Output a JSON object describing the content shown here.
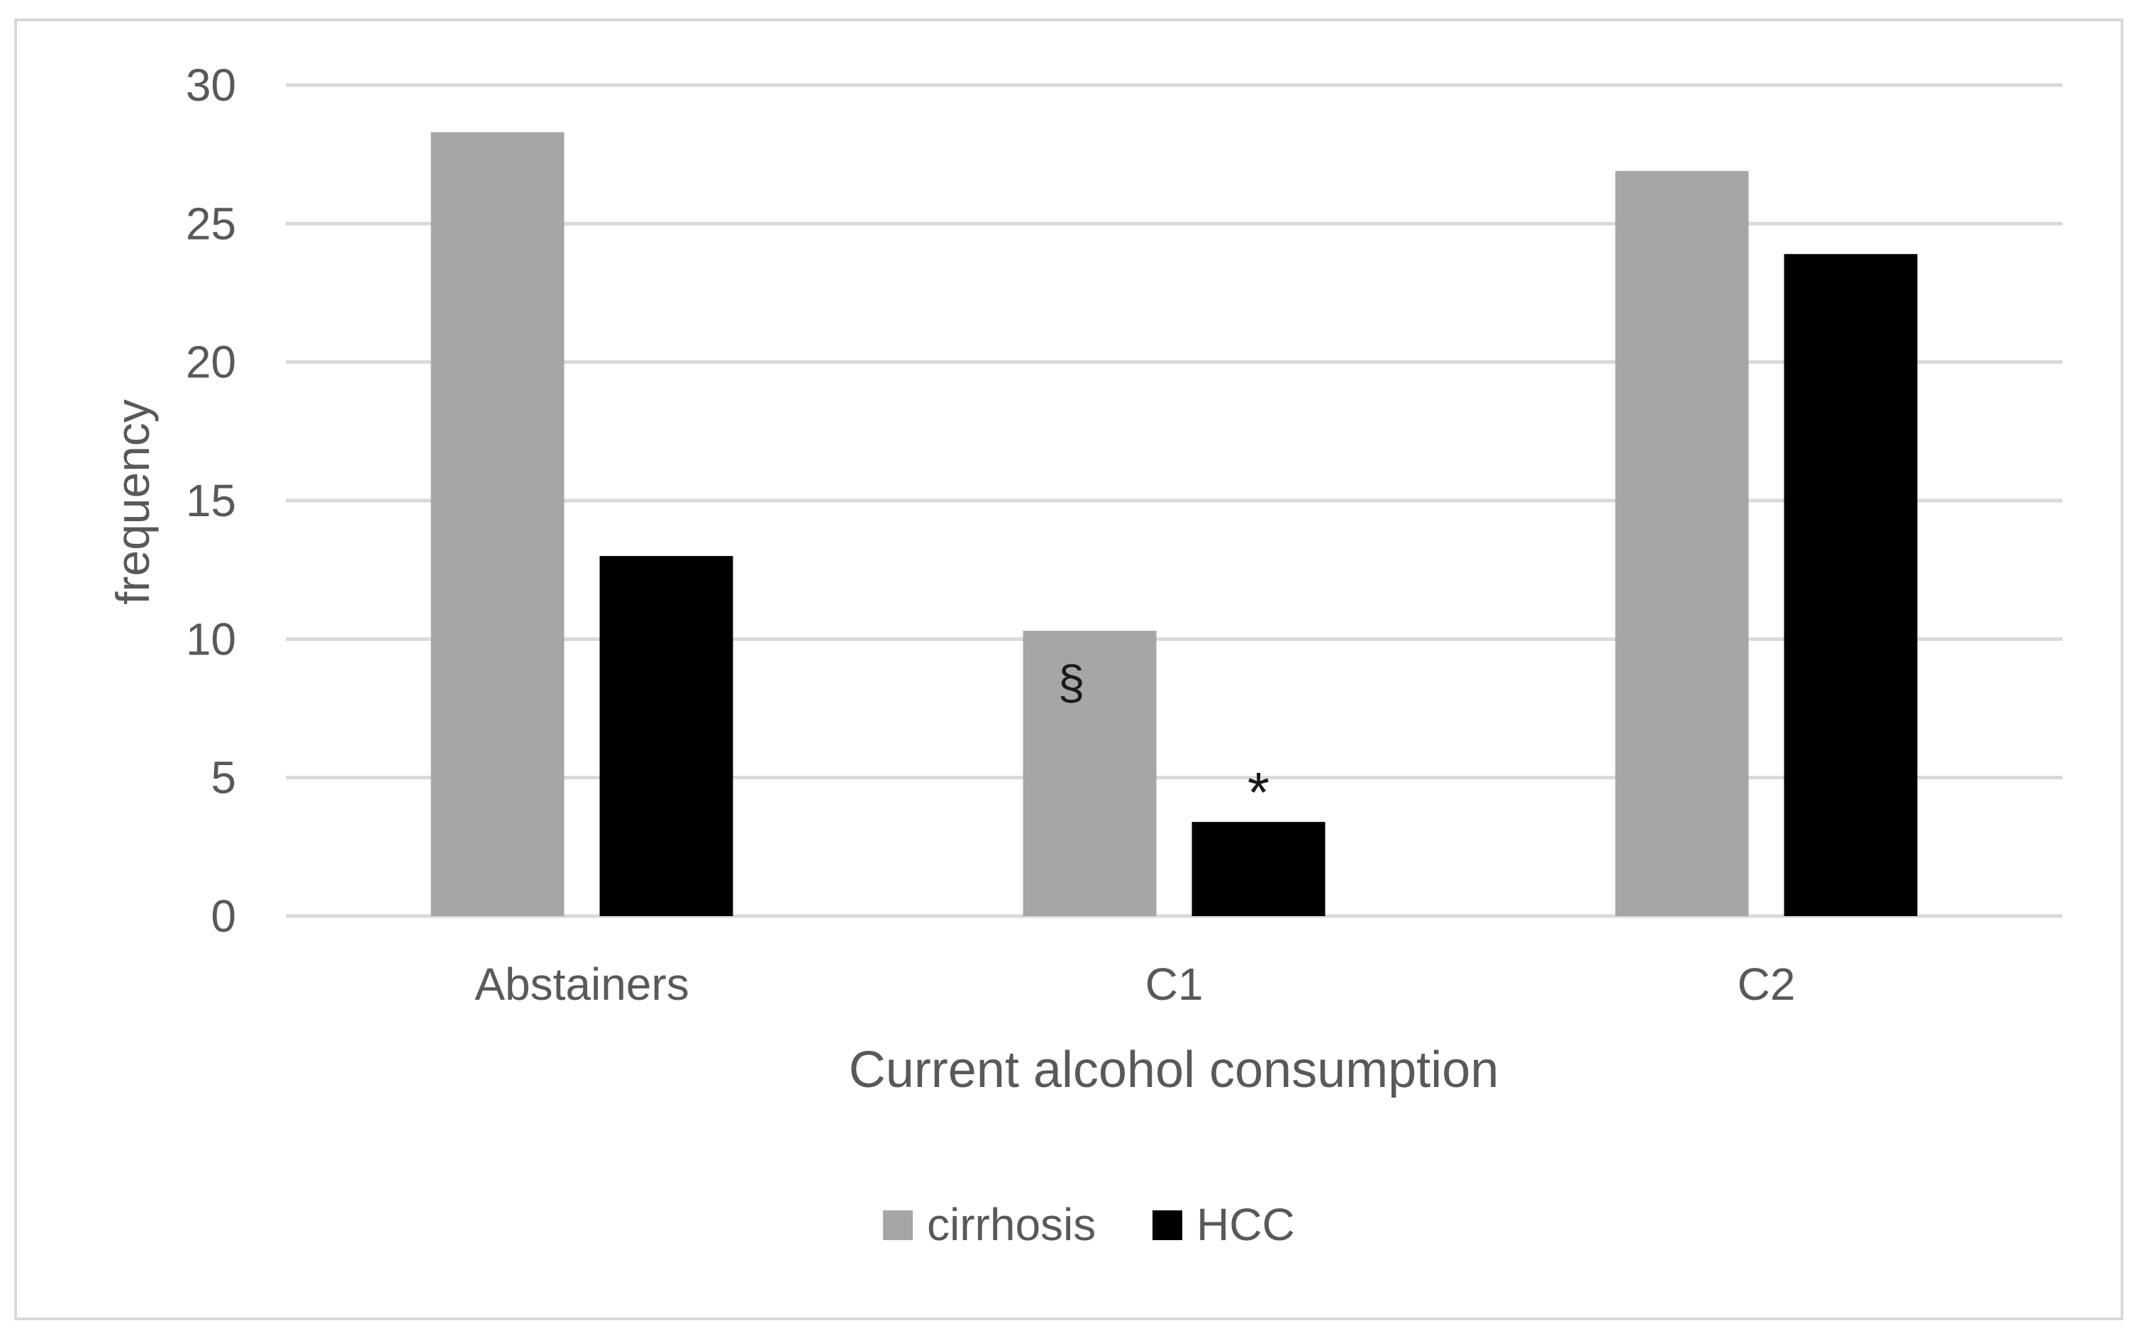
{
  "chart_data": {
    "type": "bar",
    "title": "",
    "xlabel": "Current alcohol consumption",
    "ylabel": "frequency",
    "categories": [
      "Abstainers",
      "C1",
      "C2"
    ],
    "series": [
      {
        "name": "cirrhosis",
        "color": "#a6a6a6",
        "values": [
          28.3,
          10.3,
          26.9
        ]
      },
      {
        "name": "HCC",
        "color": "#000000",
        "values": [
          13.0,
          3.4,
          23.9
        ]
      }
    ],
    "ylim": [
      0,
      30
    ],
    "yticks": [
      "0",
      "5",
      "10",
      "15",
      "20",
      "25",
      "30"
    ],
    "grid": true,
    "legend": "bottom-center",
    "annotations": [
      {
        "text": "§",
        "category": "C1",
        "series": "cirrhosis"
      },
      {
        "text": "*",
        "category": "C1",
        "series": "HCC"
      }
    ]
  }
}
